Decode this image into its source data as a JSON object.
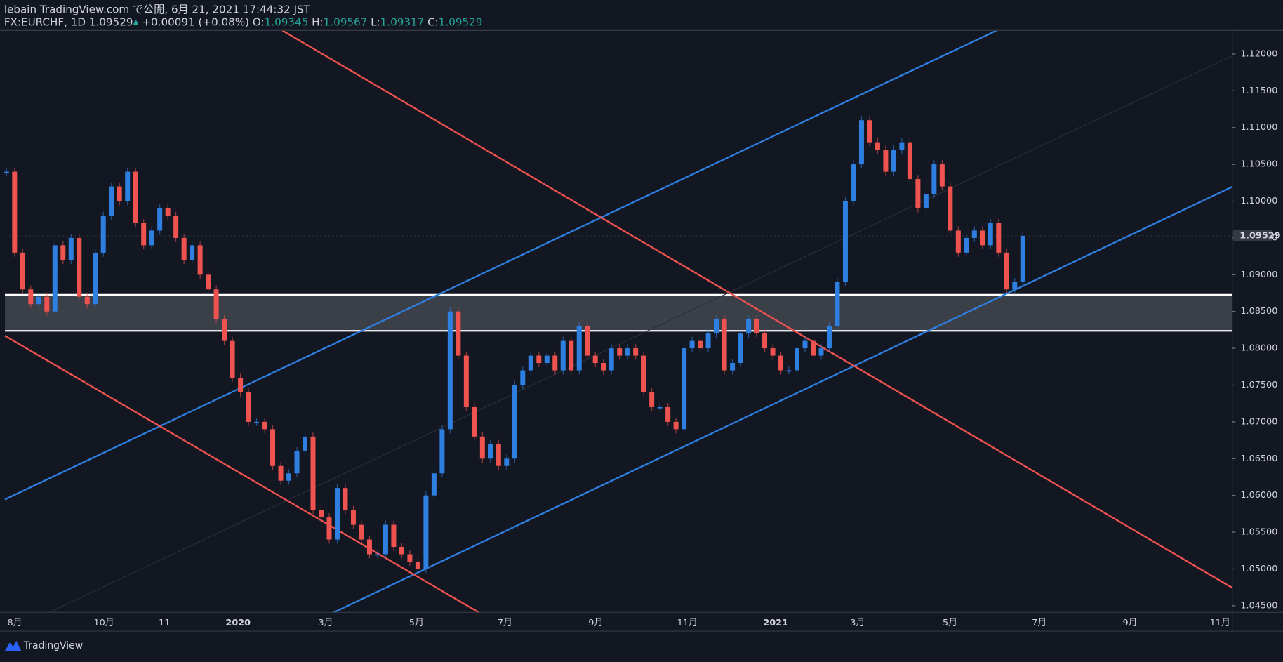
{
  "header": {
    "published": "lebain TradingView.com で公開, 6月 21, 2021 17:44:32 JST",
    "symbol": "FX:EURCHF, 1D",
    "last": "1.09529",
    "change": "+0.00091 (+0.08%)",
    "open_label": "O:",
    "open": "1.09345",
    "high_label": "H:",
    "high": "1.09567",
    "low_label": "L:",
    "low": "1.09317",
    "close_label": "C:",
    "close": "1.09529"
  },
  "footer": {
    "logo": "TradingView"
  },
  "chart_data": {
    "type": "candlestick",
    "up_color": "#2e7fe0",
    "down_color": "#ef5350",
    "values": [
      1.104,
      1.093,
      1.088,
      1.086,
      1.087,
      1.085,
      1.094,
      1.092,
      1.095,
      1.087,
      1.086,
      1.093,
      1.098,
      1.102,
      1.1,
      1.104,
      1.097,
      1.094,
      1.096,
      1.099,
      1.098,
      1.095,
      1.092,
      1.094,
      1.09,
      1.088,
      1.084,
      1.081,
      1.076,
      1.074,
      1.07,
      1.07,
      1.069,
      1.064,
      1.062,
      1.063,
      1.066,
      1.068,
      1.058,
      1.057,
      1.054,
      1.061,
      1.058,
      1.056,
      1.054,
      1.052,
      1.052,
      1.056,
      1.053,
      1.052,
      1.051,
      1.05,
      1.06,
      1.063,
      1.069,
      1.085,
      1.079,
      1.072,
      1.068,
      1.065,
      1.067,
      1.064,
      1.065,
      1.075,
      1.077,
      1.079,
      1.078,
      1.079,
      1.077,
      1.081,
      1.077,
      1.083,
      1.079,
      1.078,
      1.077,
      1.08,
      1.079,
      1.08,
      1.079,
      1.074,
      1.072,
      1.072,
      1.07,
      1.069,
      1.08,
      1.081,
      1.08,
      1.082,
      1.084,
      1.077,
      1.078,
      1.082,
      1.084,
      1.082,
      1.08,
      1.079,
      1.077,
      1.077,
      1.08,
      1.081,
      1.079,
      1.08,
      1.083,
      1.089,
      1.1,
      1.105,
      1.111,
      1.108,
      1.107,
      1.104,
      1.107,
      1.108,
      1.103,
      1.099,
      1.101,
      1.105,
      1.102,
      1.096,
      1.093,
      1.095,
      1.096,
      1.094,
      1.097,
      1.093,
      1.088,
      1.089,
      1.09529
    ],
    "x_labels": [
      "8月",
      "10月",
      "11",
      "2020",
      "3月",
      "5月",
      "7月",
      "9月",
      "11月",
      "2021",
      "3月",
      "5月",
      "7月",
      "9月",
      "11月"
    ],
    "ylim": [
      1.0441,
      1.1232
    ],
    "yticks": [
      {
        "value": 1.045,
        "label": "1.04500"
      },
      {
        "value": 1.05,
        "label": "1.05000"
      },
      {
        "value": 1.055,
        "label": "1.05500"
      },
      {
        "value": 1.06,
        "label": "1.06000"
      },
      {
        "value": 1.065,
        "label": "1.06500"
      },
      {
        "value": 1.07,
        "label": "1.07000"
      },
      {
        "value": 1.075,
        "label": "1.07500"
      },
      {
        "value": 1.08,
        "label": "1.08000"
      },
      {
        "value": 1.085,
        "label": "1.08500"
      },
      {
        "value": 1.09,
        "label": "1.09000"
      },
      {
        "value": 1.095,
        "label": "1.09500"
      },
      {
        "value": 1.1,
        "label": "1.10000"
      },
      {
        "value": 1.105,
        "label": "1.10500"
      },
      {
        "value": 1.11,
        "label": "1.11000"
      },
      {
        "value": 1.115,
        "label": "1.11500"
      },
      {
        "value": 1.12,
        "label": "1.12000"
      }
    ]
  }
}
